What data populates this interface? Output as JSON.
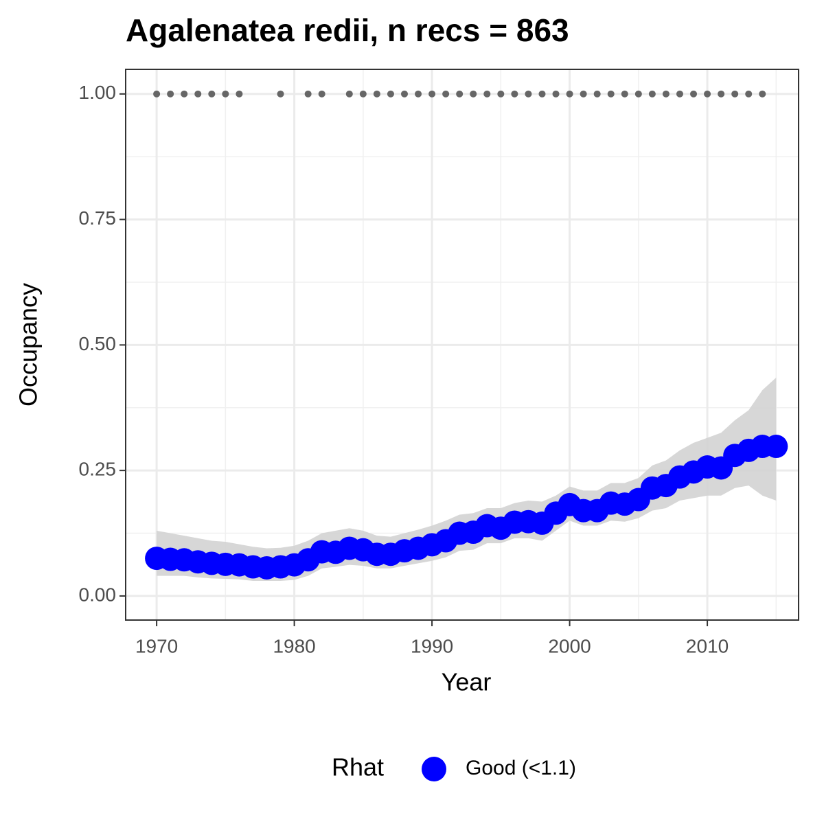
{
  "chart_data": {
    "type": "line",
    "title": "Agalenatea redii, n recs = 863",
    "x_label": "Year",
    "y_label": "Occupancy",
    "x": [
      1970,
      1971,
      1972,
      1973,
      1974,
      1975,
      1976,
      1977,
      1978,
      1979,
      1980,
      1981,
      1982,
      1983,
      1984,
      1985,
      1986,
      1987,
      1988,
      1989,
      1990,
      1991,
      1992,
      1993,
      1994,
      1995,
      1996,
      1997,
      1998,
      1999,
      2000,
      2001,
      2002,
      2003,
      2004,
      2005,
      2006,
      2007,
      2008,
      2009,
      2010,
      2011,
      2012,
      2013,
      2014,
      2015
    ],
    "series": [
      {
        "name": "Good (<1.1)",
        "color": "#0000ff",
        "values": [
          0.075,
          0.073,
          0.072,
          0.068,
          0.065,
          0.063,
          0.062,
          0.058,
          0.056,
          0.058,
          0.062,
          0.072,
          0.088,
          0.087,
          0.095,
          0.092,
          0.083,
          0.083,
          0.09,
          0.095,
          0.102,
          0.11,
          0.125,
          0.127,
          0.14,
          0.135,
          0.147,
          0.148,
          0.145,
          0.165,
          0.182,
          0.17,
          0.17,
          0.185,
          0.183,
          0.192,
          0.215,
          0.22,
          0.237,
          0.247,
          0.257,
          0.255,
          0.28,
          0.29,
          0.298,
          0.298
        ]
      }
    ],
    "ribbon": {
      "color": "#d3d3d3",
      "upper": [
        0.13,
        0.125,
        0.12,
        0.115,
        0.11,
        0.108,
        0.103,
        0.098,
        0.095,
        0.096,
        0.1,
        0.11,
        0.125,
        0.13,
        0.135,
        0.13,
        0.12,
        0.118,
        0.125,
        0.132,
        0.14,
        0.15,
        0.162,
        0.165,
        0.175,
        0.175,
        0.185,
        0.19,
        0.188,
        0.2,
        0.218,
        0.21,
        0.21,
        0.225,
        0.225,
        0.235,
        0.26,
        0.27,
        0.29,
        0.305,
        0.315,
        0.325,
        0.35,
        0.37,
        0.41,
        0.435
      ],
      "lower": [
        0.04,
        0.04,
        0.04,
        0.037,
        0.035,
        0.034,
        0.033,
        0.03,
        0.03,
        0.03,
        0.032,
        0.04,
        0.055,
        0.058,
        0.062,
        0.06,
        0.055,
        0.055,
        0.06,
        0.065,
        0.07,
        0.077,
        0.09,
        0.092,
        0.105,
        0.105,
        0.115,
        0.115,
        0.11,
        0.13,
        0.15,
        0.14,
        0.14,
        0.15,
        0.148,
        0.155,
        0.17,
        0.175,
        0.19,
        0.195,
        0.2,
        0.2,
        0.215,
        0.22,
        0.2,
        0.19
      ]
    },
    "detections": {
      "color": "#666666",
      "x": [
        1970,
        1971,
        1972,
        1973,
        1974,
        1975,
        1976,
        1979,
        1981,
        1982,
        1984,
        1985,
        1986,
        1987,
        1988,
        1989,
        1990,
        1991,
        1992,
        1993,
        1994,
        1995,
        1996,
        1997,
        1998,
        1999,
        2000,
        2001,
        2002,
        2003,
        2004,
        2005,
        2006,
        2007,
        2008,
        2009,
        2010,
        2011,
        2012,
        2013,
        2014
      ],
      "values": [
        1,
        1,
        1,
        1,
        1,
        1,
        1,
        1,
        1,
        1,
        1,
        1,
        1,
        1,
        1,
        1,
        1,
        1,
        1,
        1,
        1,
        1,
        1,
        1,
        1,
        1,
        1,
        1,
        1,
        1,
        1,
        1,
        1,
        1,
        1,
        1,
        1,
        1,
        1,
        1,
        1
      ]
    },
    "xlim": [
      1967.75,
      2016.63
    ],
    "ylim": [
      -0.048,
      1.049
    ],
    "xticks": [
      1970,
      1980,
      1990,
      2000,
      2010
    ],
    "yticks": [
      {
        "value": 0,
        "label": "0.00"
      },
      {
        "value": 0.25,
        "label": "0.25"
      },
      {
        "value": 0.5,
        "label": "0.50"
      },
      {
        "value": 0.75,
        "label": "0.75"
      },
      {
        "value": 1,
        "label": "1.00"
      }
    ],
    "grid": true,
    "legend_title": "Rhat",
    "legend_position": "bottom"
  }
}
